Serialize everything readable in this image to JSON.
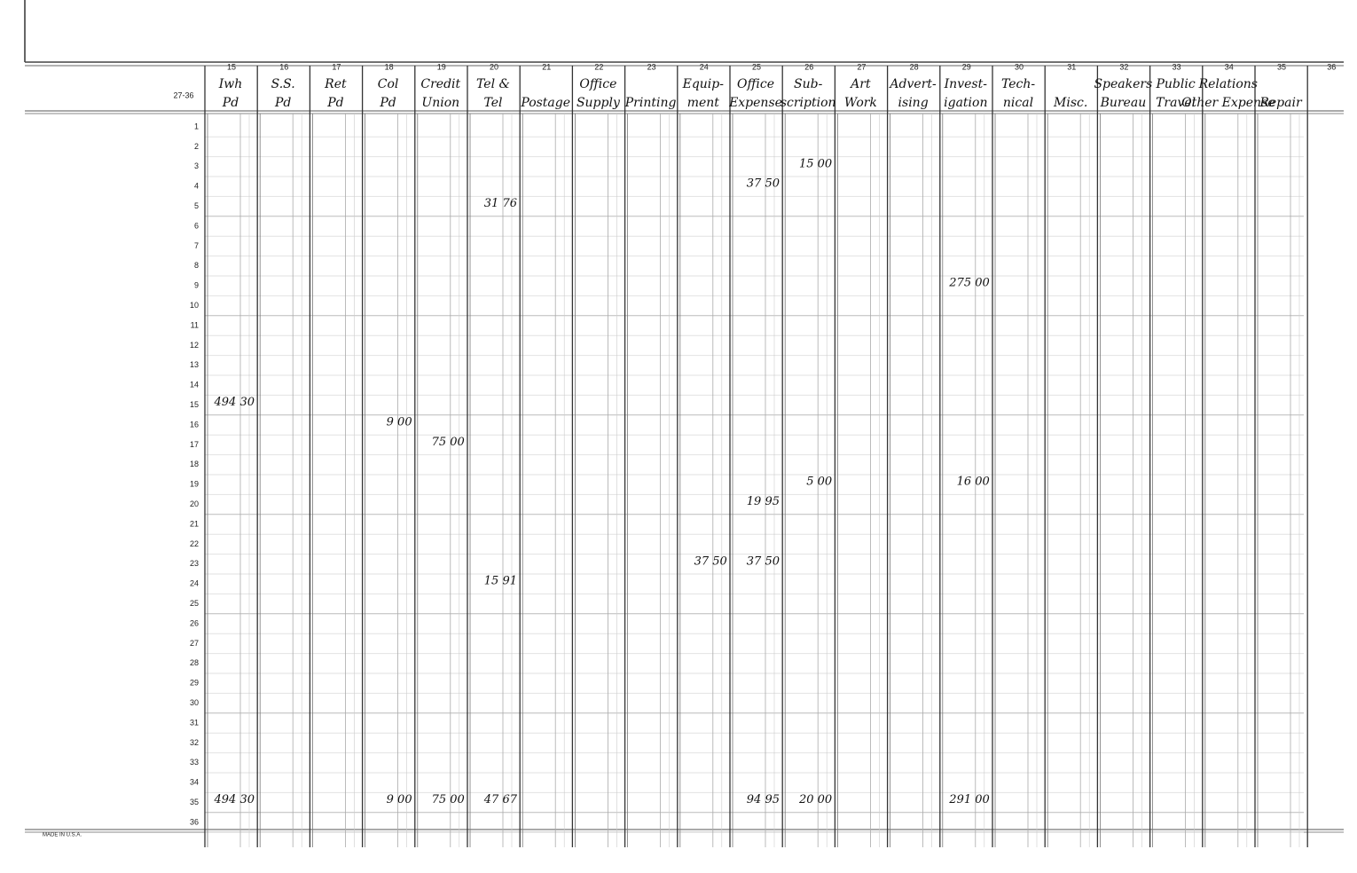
{
  "ledger": {
    "form_number": "27-36",
    "imprint": "MADE IN U.S.A.",
    "columns": [
      {
        "number": "15",
        "heading": [
          "Iwh",
          "Pd"
        ]
      },
      {
        "number": "16",
        "heading": [
          "S.S.",
          "Pd"
        ]
      },
      {
        "number": "17",
        "heading": [
          "Ret",
          "Pd"
        ]
      },
      {
        "number": "18",
        "heading": [
          "Col",
          "Pd"
        ]
      },
      {
        "number": "19",
        "heading": [
          "Credit",
          "Union"
        ]
      },
      {
        "number": "20",
        "heading": [
          "Tel &",
          "Tel"
        ]
      },
      {
        "number": "21",
        "heading": [
          "",
          "Postage"
        ]
      },
      {
        "number": "22",
        "heading": [
          "Office",
          "Supply"
        ]
      },
      {
        "number": "23",
        "heading": [
          "",
          "Printing"
        ]
      },
      {
        "number": "24",
        "heading": [
          "Equip-",
          "ment"
        ]
      },
      {
        "number": "25",
        "heading": [
          "Office",
          "Expense"
        ]
      },
      {
        "number": "26",
        "heading": [
          "Sub-",
          "scription"
        ]
      },
      {
        "number": "27",
        "heading": [
          "Art",
          "Work"
        ]
      },
      {
        "number": "28",
        "heading": [
          "Advert-",
          "ising"
        ]
      },
      {
        "number": "29",
        "heading": [
          "Invest-",
          "igation"
        ]
      },
      {
        "number": "30",
        "heading": [
          "Tech-",
          "nical"
        ]
      },
      {
        "number": "31",
        "heading": [
          "",
          "Misc."
        ]
      },
      {
        "number": "32",
        "heading": [
          "Speakers",
          "Bureau"
        ]
      },
      {
        "number": "33",
        "heading": [
          "Public",
          "Travel"
        ]
      },
      {
        "number": "34",
        "heading": [
          "Relations",
          "Other Expense"
        ]
      },
      {
        "number": "35",
        "heading": [
          "",
          "Repair"
        ]
      }
    ],
    "last_rule_number": "36",
    "rows": [
      {
        "number": "1",
        "entries": {}
      },
      {
        "number": "2",
        "entries": {}
      },
      {
        "number": "3",
        "entries": {
          "26": "15 00"
        }
      },
      {
        "number": "4",
        "entries": {
          "25": "37 50"
        }
      },
      {
        "number": "5",
        "entries": {
          "20": "31 76"
        }
      },
      {
        "number": "6",
        "entries": {}
      },
      {
        "number": "7",
        "entries": {}
      },
      {
        "number": "8",
        "entries": {}
      },
      {
        "number": "9",
        "entries": {
          "29": "275 00"
        }
      },
      {
        "number": "10",
        "entries": {}
      },
      {
        "number": "11",
        "entries": {}
      },
      {
        "number": "12",
        "entries": {}
      },
      {
        "number": "13",
        "entries": {}
      },
      {
        "number": "14",
        "entries": {}
      },
      {
        "number": "15",
        "entries": {
          "15": "494 30"
        }
      },
      {
        "number": "16",
        "entries": {
          "18": "9 00"
        }
      },
      {
        "number": "17",
        "entries": {
          "19": "75 00"
        }
      },
      {
        "number": "18",
        "entries": {}
      },
      {
        "number": "19",
        "entries": {
          "26": "5 00",
          "29": "16 00"
        }
      },
      {
        "number": "20",
        "entries": {
          "25": "19 95"
        }
      },
      {
        "number": "21",
        "entries": {}
      },
      {
        "number": "22",
        "entries": {}
      },
      {
        "number": "23",
        "entries": {
          "24": "37 50",
          "25": "37 50"
        }
      },
      {
        "number": "24",
        "entries": {
          "20": "15 91"
        }
      },
      {
        "number": "25",
        "entries": {}
      },
      {
        "number": "26",
        "entries": {}
      },
      {
        "number": "27",
        "entries": {}
      },
      {
        "number": "28",
        "entries": {}
      },
      {
        "number": "29",
        "entries": {}
      },
      {
        "number": "30",
        "entries": {}
      },
      {
        "number": "31",
        "entries": {}
      },
      {
        "number": "32",
        "entries": {}
      },
      {
        "number": "33",
        "entries": {}
      },
      {
        "number": "34",
        "entries": {}
      },
      {
        "number": "35",
        "entries": {
          "15": "494 30",
          "18": "9 00",
          "19": "75 00",
          "20": "47 67",
          "25": "94 95",
          "26": "20 00",
          "29": "291 00"
        }
      },
      {
        "number": "36",
        "entries": {}
      }
    ]
  }
}
